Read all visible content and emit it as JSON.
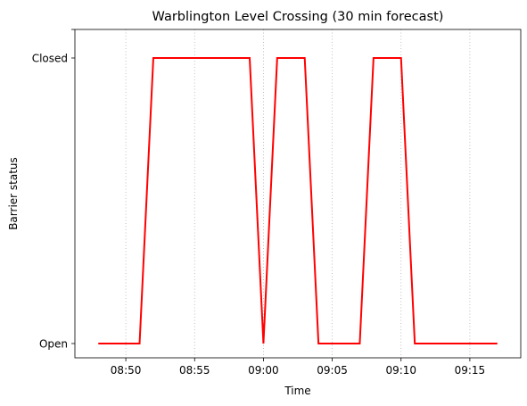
{
  "chart_data": {
    "type": "line",
    "title": "Warblington Level Crossing (30 min forecast)",
    "xlabel": "Time",
    "ylabel": "Barrier status",
    "x_ticks": [
      "08:50",
      "08:55",
      "09:00",
      "09:05",
      "09:10",
      "09:15"
    ],
    "y_ticks": [
      "Open",
      "Closed"
    ],
    "y_values_legend": {
      "Open": 0,
      "Closed": 1
    },
    "xlim": [
      "08:46:18",
      "09:18:42"
    ],
    "ylim": [
      -0.05,
      1.1
    ],
    "grid": "x-axis, dotted",
    "series": [
      {
        "color": "#ff0000",
        "x": [
          "08:48",
          "08:51",
          "08:52",
          "08:59",
          "09:00",
          "09:01",
          "09:03",
          "09:04",
          "09:07",
          "09:08",
          "09:10",
          "09:11",
          "09:17"
        ],
        "y": [
          0,
          0,
          1,
          1,
          0,
          1,
          1,
          0,
          0,
          1,
          1,
          0,
          0
        ]
      }
    ]
  }
}
